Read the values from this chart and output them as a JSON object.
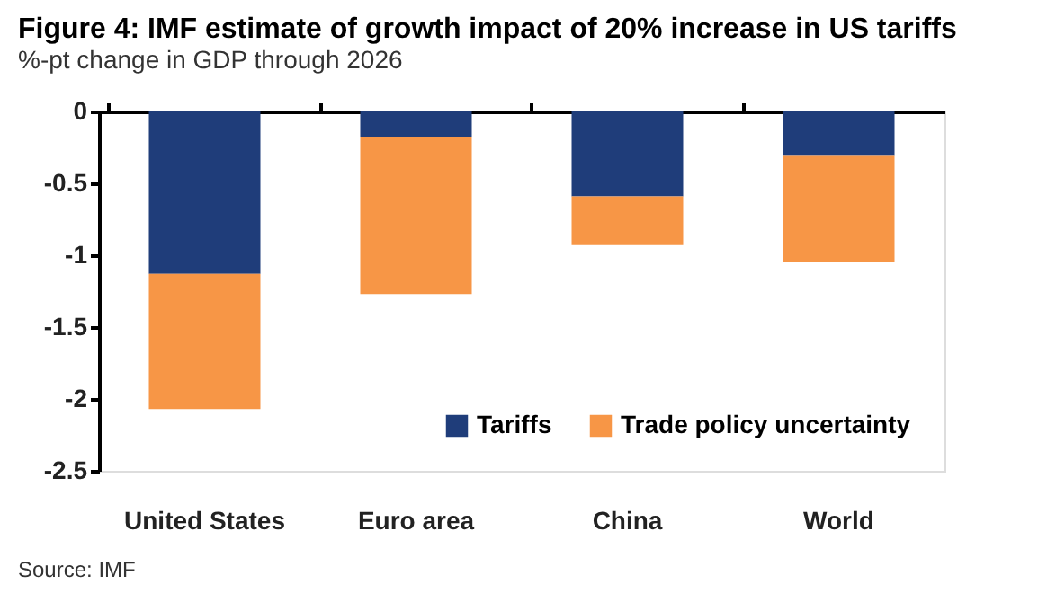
{
  "chart_data": {
    "type": "bar",
    "title": "Figure 4: IMF estimate of growth impact of 20% increase in US tariffs",
    "subtitle": "%-pt change in GDP through 2026",
    "categories": [
      "United States",
      "Euro area",
      "China",
      "World"
    ],
    "series": [
      {
        "name": "Tariffs",
        "color": "#1f3d7a",
        "values": [
          -1.13,
          -0.18,
          -0.59,
          -0.31
        ]
      },
      {
        "name": "Trade policy uncertainty",
        "color": "#f79646",
        "values": [
          -0.94,
          -1.09,
          -0.34,
          -0.74
        ]
      }
    ],
    "stacked": true,
    "ylim": [
      -2.5,
      0
    ],
    "yticks": [
      0,
      -0.5,
      -1,
      -1.5,
      -2,
      -2.5
    ],
    "grid": false,
    "legend": "bottom right",
    "annotations": [
      "Source: IMF"
    ]
  }
}
